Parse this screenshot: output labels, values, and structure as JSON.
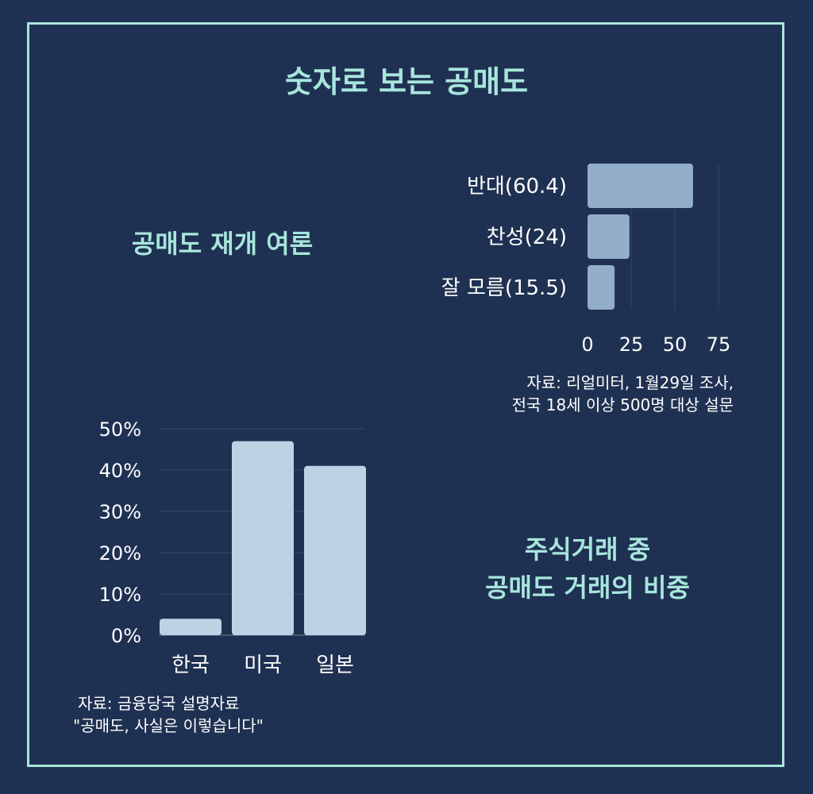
{
  "page": {
    "title": "숫자로 보는 공매도",
    "colors": {
      "background": "#1f3152",
      "accent": "#a8e6dc",
      "bar_top": "#93aec8",
      "bar_bottom": "#bdd3e4",
      "text": "#ffffff"
    }
  },
  "poll": {
    "heading": "공매도 재개 여론",
    "source_line1": "자료: 리얼미터, 1월29일 조사,",
    "source_line2": "전국 18세 이상 500명 대상 설문"
  },
  "short_share": {
    "heading_line1": "주식거래 중",
    "heading_line2": "공매도 거래의 비중",
    "source_line1": "자료: 금융당국 설명자료",
    "source_line2": "\"공매도, 사실은 이렇습니다\""
  },
  "chart_data": [
    {
      "type": "bar",
      "orientation": "horizontal",
      "categories": [
        "반대(60.4)",
        "찬성(24)",
        "잘 모름(15.5)"
      ],
      "values": [
        60.4,
        24,
        15.5
      ],
      "xlim": [
        0,
        75
      ],
      "xticks": [
        "0",
        "25",
        "50",
        "75"
      ],
      "grid": true
    },
    {
      "type": "bar",
      "orientation": "vertical",
      "categories": [
        "한국",
        "미국",
        "일본"
      ],
      "values": [
        4,
        47,
        41
      ],
      "ylim": [
        0,
        50
      ],
      "yticks": [
        "0%",
        "10%",
        "20%",
        "30%",
        "40%",
        "50%"
      ],
      "grid": true
    }
  ]
}
